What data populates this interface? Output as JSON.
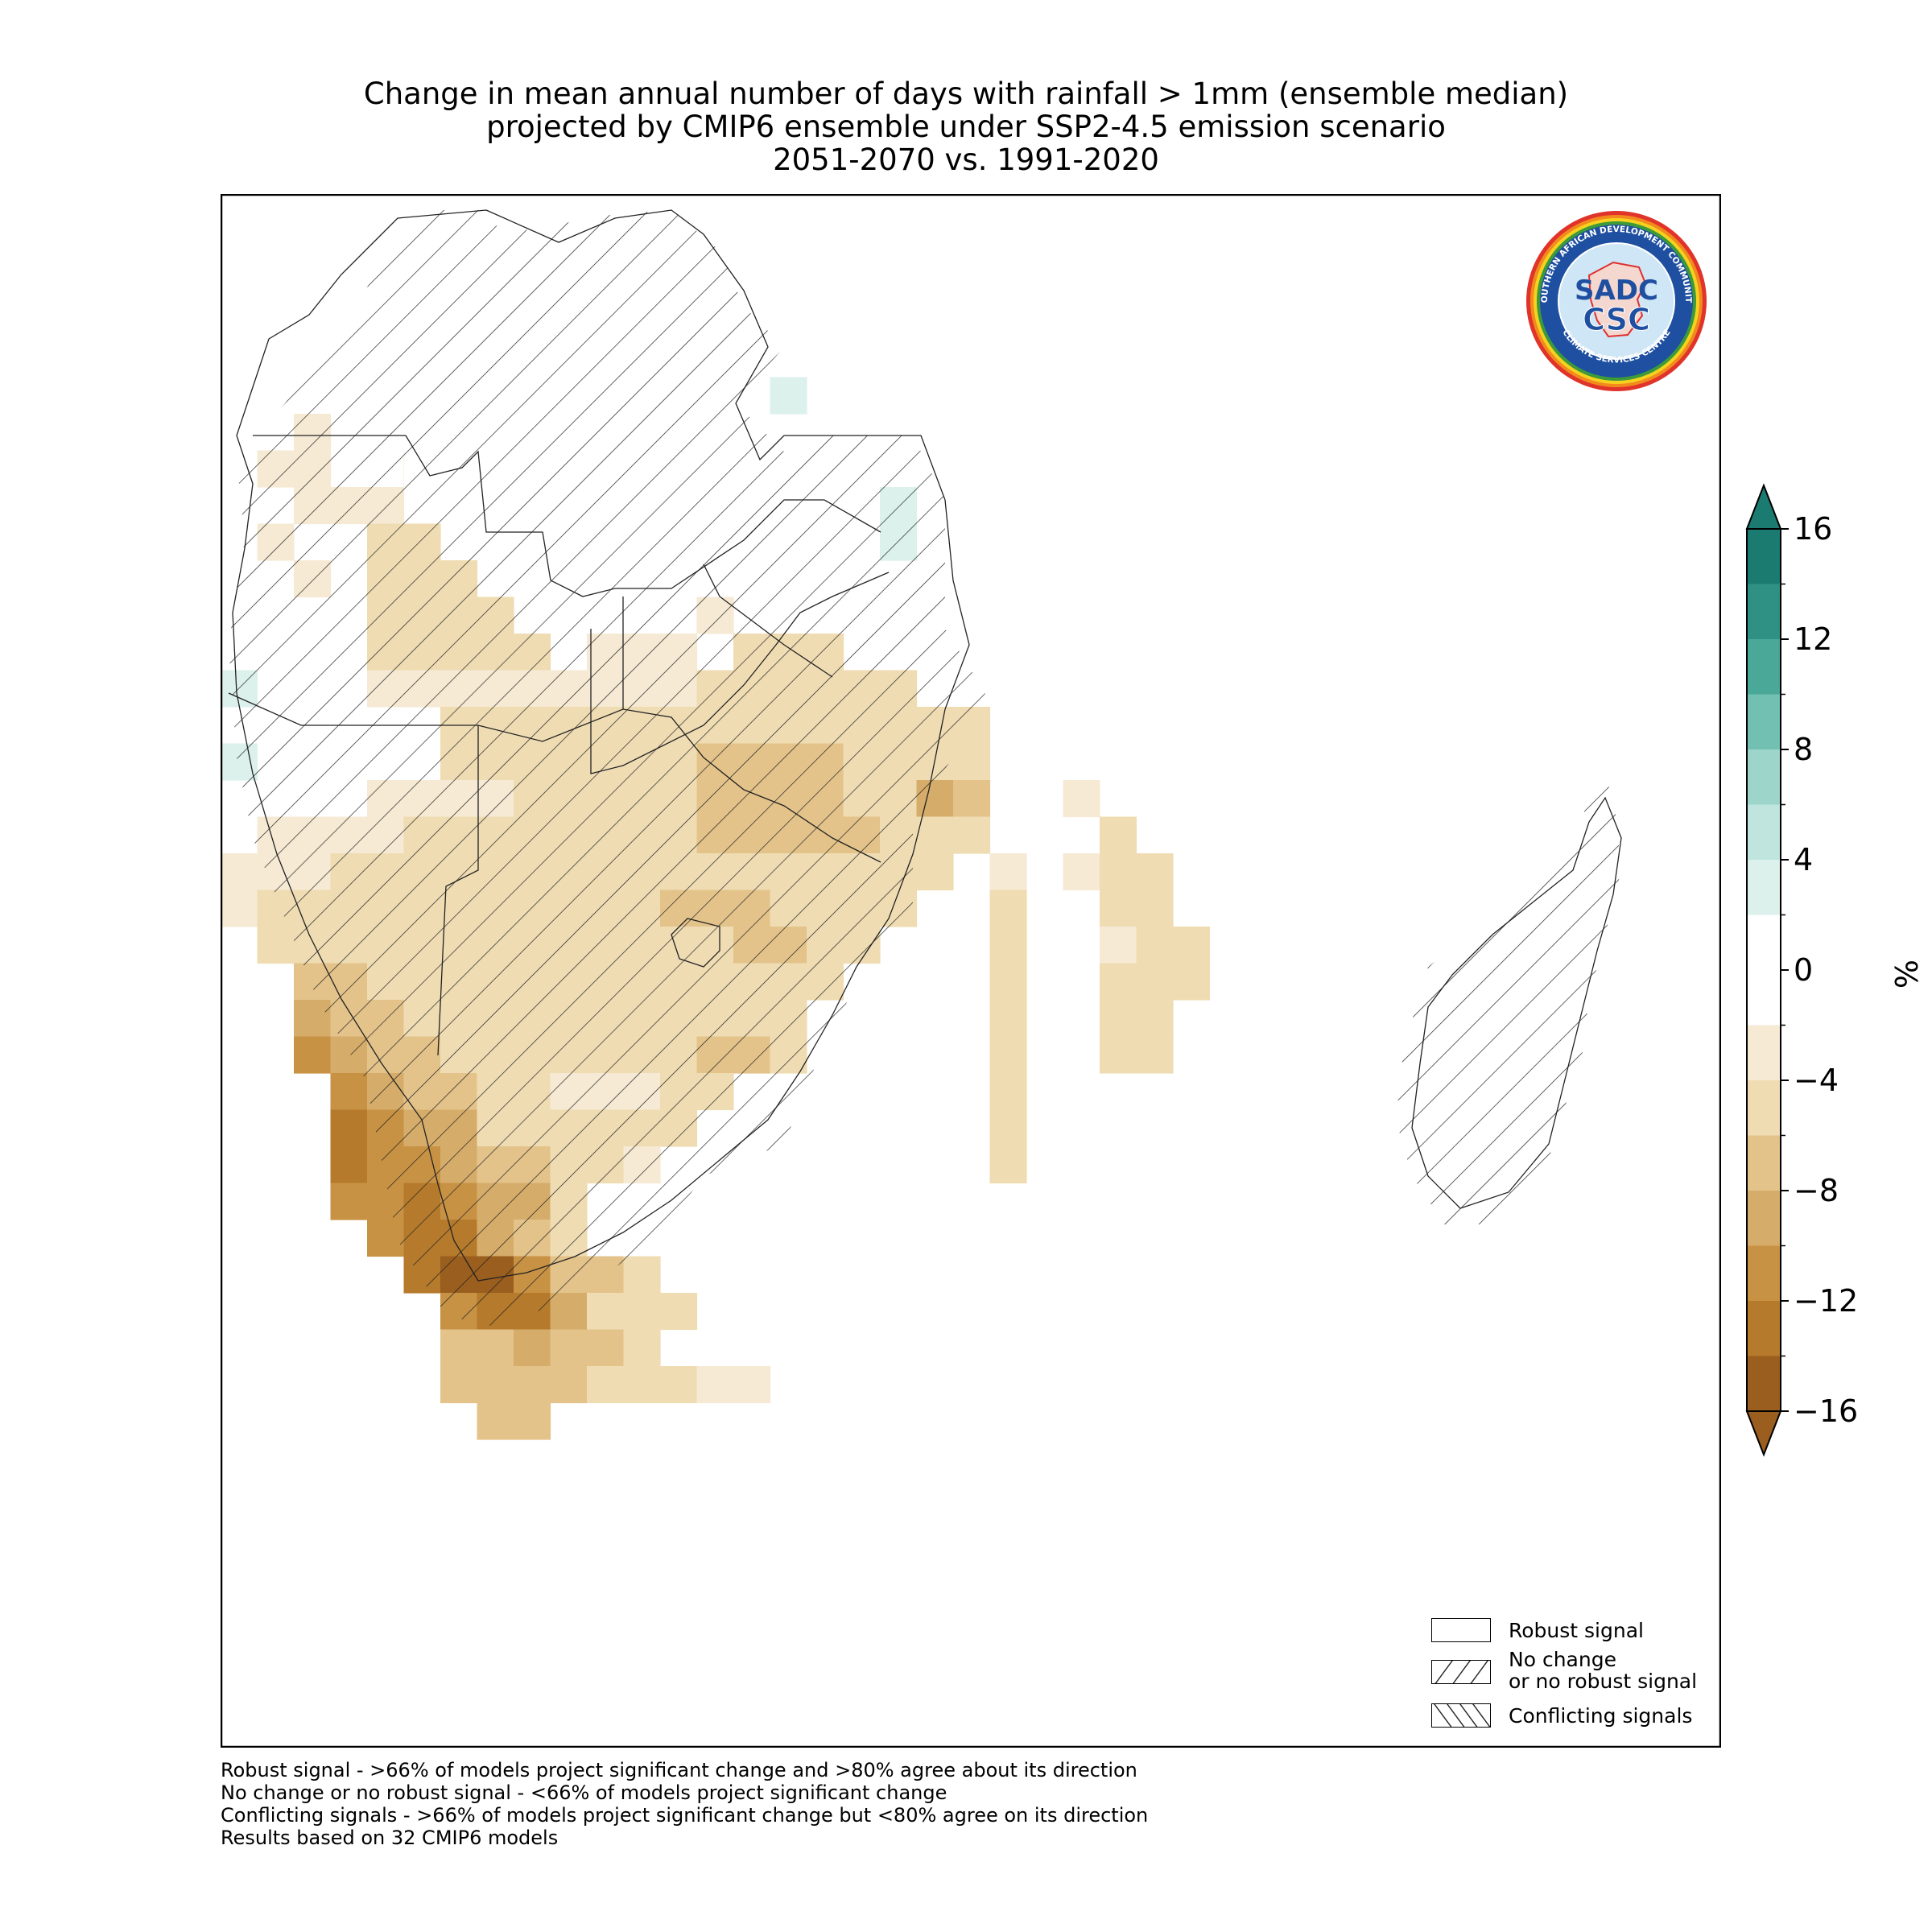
{
  "title": {
    "line1": "Change in mean annual number of days with rainfall > 1mm (ensemble median)",
    "line2": "projected by CMIP6 ensemble under SSP2-4.5 emission scenario",
    "line3": "2051-2070 vs. 1991-2020"
  },
  "colorbar": {
    "unit_label": "%",
    "ticks": [
      "16",
      "12",
      "8",
      "4",
      "0",
      "−4",
      "−8",
      "−12",
      "−16"
    ],
    "levels": [
      16,
      14,
      12,
      10,
      8,
      6,
      4,
      2,
      -2,
      -4,
      -6,
      -8,
      -10,
      -12,
      -14,
      -16
    ],
    "colors": {
      "14_16": "#1b7b70",
      "12_14": "#2f9184",
      "10_12": "#4aa898",
      "8_10": "#72c0b1",
      "6_8": "#9dd5ca",
      "4_6": "#bfe5de",
      "2_4": "#dcf0ec",
      "0": "#ffffff",
      "m2_m4": "#f6ead4",
      "m4_m6": "#efdcb3",
      "m6_m8": "#e3c38a",
      "m8_m10": "#d6ac6a",
      "m10_m12": "#c89244",
      "m12_m14": "#b57a2b",
      "m14_m16": "#9a5e1e"
    },
    "extend": "both"
  },
  "legend": {
    "robust": "Robust signal",
    "no_change_line1": "No change",
    "no_change_line2": "or no robust signal",
    "conflicting": "Conflicting signals"
  },
  "footnotes": [
    "Robust signal - >66% of models project significant change and >80% agree about its direction",
    "No change or no robust signal - <66% of models project significant change",
    "Conflicting signals - >66% of models project significant change but <80% agree on its direction",
    "Results based on 32 CMIP6 models"
  ],
  "logo": {
    "ring_text_top": "SOUTHERN AFRICAN DEVELOPMENT COMMUNITY",
    "ring_text_bottom": "CLIMATE SERVICES CENTRE",
    "mark_top": "SADC",
    "mark_bottom": "CSC"
  }
}
